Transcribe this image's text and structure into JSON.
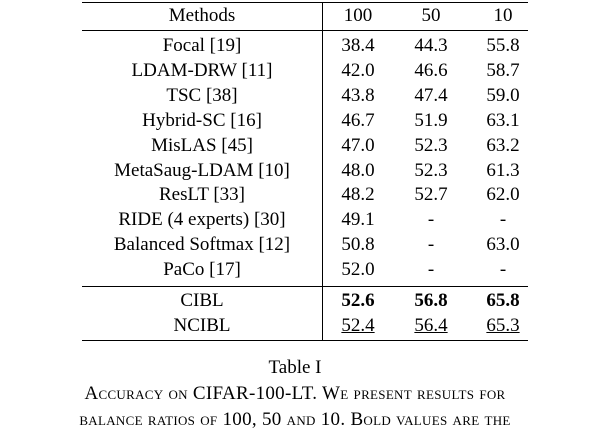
{
  "table": {
    "header": [
      "Methods",
      "100",
      "50",
      "10"
    ],
    "rows": [
      [
        "Focal [19]",
        "38.4",
        "44.3",
        "55.8"
      ],
      [
        "LDAM-DRW [11]",
        "42.0",
        "46.6",
        "58.7"
      ],
      [
        "TSC [38]",
        "43.8",
        "47.4",
        "59.0"
      ],
      [
        "Hybrid-SC [16]",
        "46.7",
        "51.9",
        "63.1"
      ],
      [
        "MisLAS [45]",
        "47.0",
        "52.3",
        "63.2"
      ],
      [
        "MetaSaug-LDAM [10]",
        "48.0",
        "52.3",
        "61.3"
      ],
      [
        "ResLT [33]",
        "48.2",
        "52.7",
        "62.0"
      ],
      [
        "RIDE (4 experts) [30]",
        "49.1",
        "-",
        "-"
      ],
      [
        "Balanced Softmax [12]",
        "50.8",
        "-",
        "63.0"
      ],
      [
        "PaCo [17]",
        "52.0",
        "-",
        "-"
      ]
    ],
    "proposed": [
      [
        "CIBL",
        "52.6",
        "56.8",
        "65.8"
      ],
      [
        "NCIBL",
        "52.4",
        "56.4",
        "65.3"
      ]
    ]
  },
  "caption": {
    "label": "Table I",
    "lines": [
      "Accuracy on CIFAR-100-LT. We present results for",
      "balance ratios of 100, 50 and 10. Bold values are the"
    ]
  }
}
